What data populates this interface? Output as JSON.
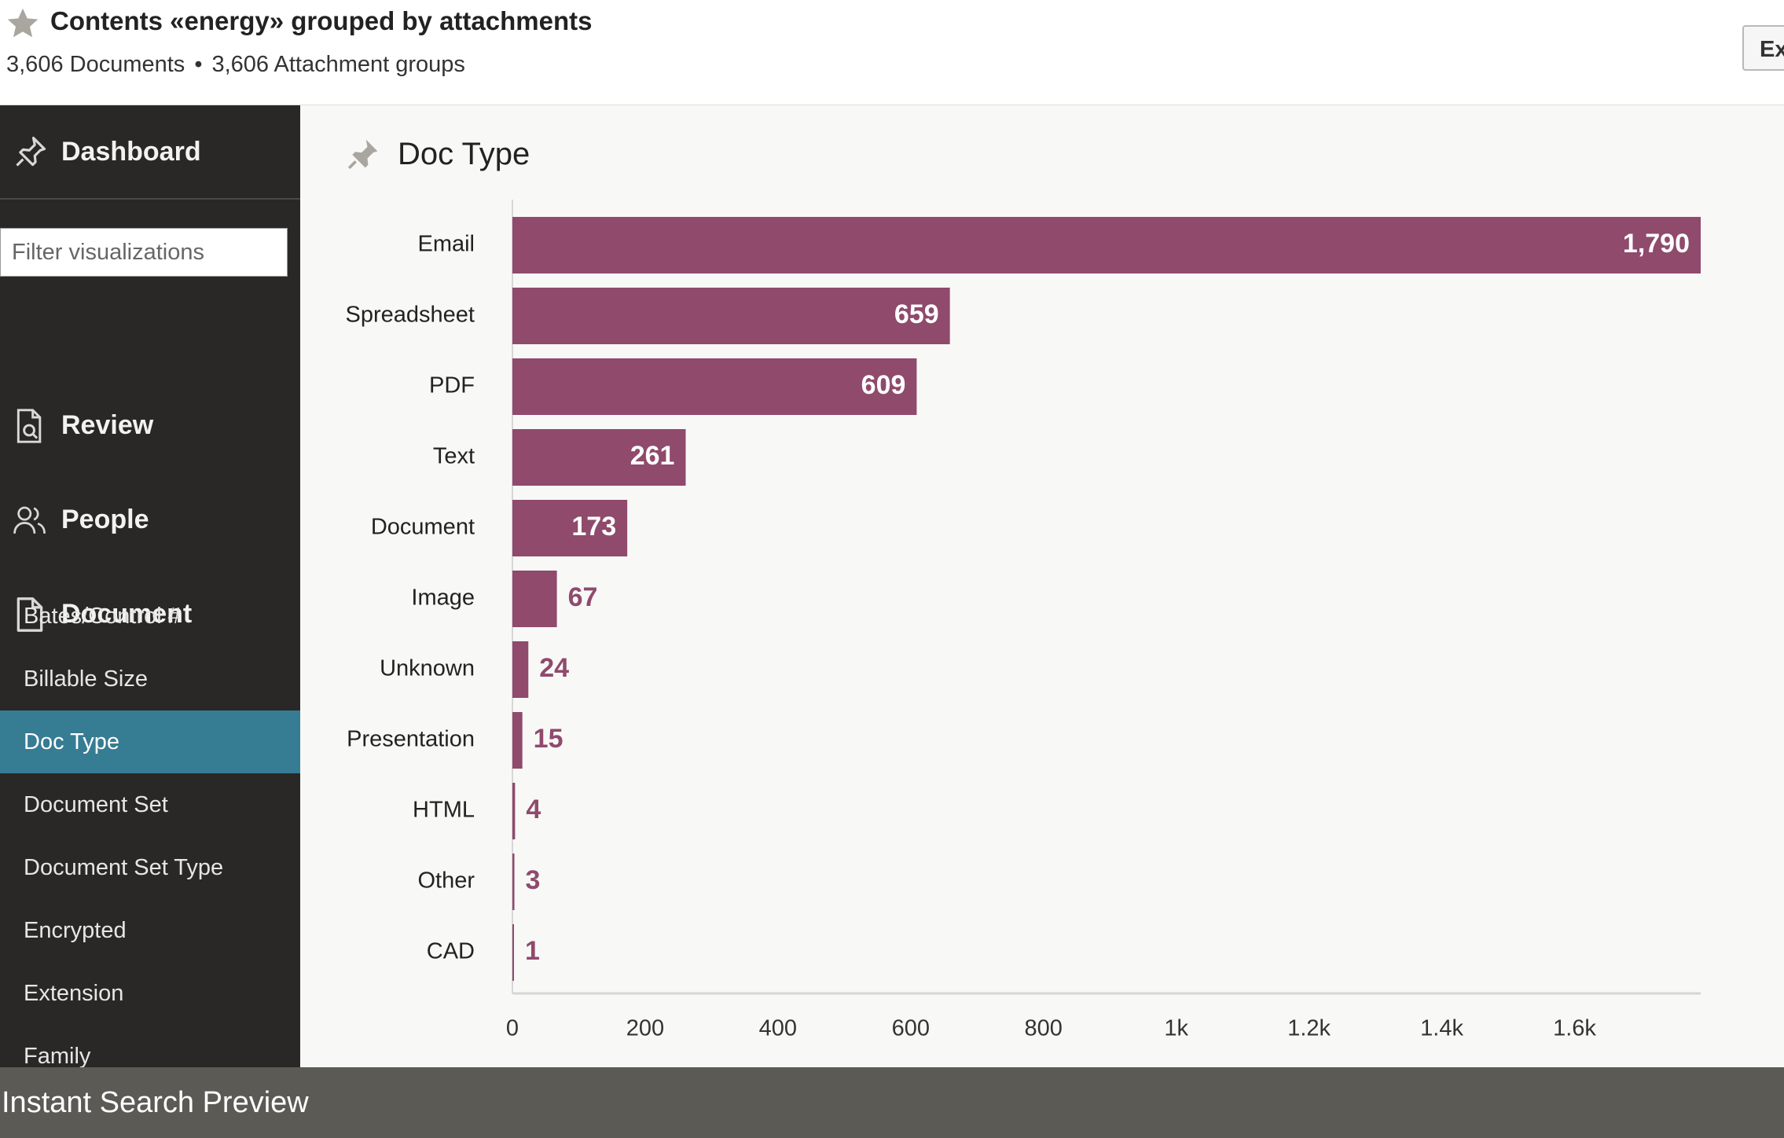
{
  "header": {
    "title": "Contents «energy» grouped by attachments",
    "documents": "3,606 Documents",
    "separator": "•",
    "groups": "3,606 Attachment groups",
    "export_label": "Ex"
  },
  "sidebar": {
    "dashboard_label": "Dashboard",
    "filter_placeholder": "Filter visualizations",
    "sections": [
      {
        "label": "Review",
        "icon": "review-search-icon"
      },
      {
        "label": "People",
        "icon": "people-icon"
      },
      {
        "label": "Document",
        "icon": "document-icon"
      }
    ],
    "items": [
      {
        "label": "Bates/Control #"
      },
      {
        "label": "Billable Size"
      },
      {
        "label": "Doc Type",
        "active": true
      },
      {
        "label": "Document Set"
      },
      {
        "label": "Document Set Type"
      },
      {
        "label": "Encrypted"
      },
      {
        "label": "Extension"
      },
      {
        "label": "Family"
      }
    ]
  },
  "panel": {
    "title": "Doc Type",
    "pin_icon": "pin-icon"
  },
  "chart_data": {
    "type": "bar",
    "orientation": "horizontal",
    "title": "",
    "xlabel": "",
    "ylabel": "",
    "categories": [
      "Email",
      "Spreadsheet",
      "PDF",
      "Text",
      "Document",
      "Image",
      "Unknown",
      "Presentation",
      "HTML",
      "Other",
      "CAD"
    ],
    "values": [
      1790,
      659,
      609,
      261,
      173,
      67,
      24,
      15,
      4,
      3,
      1
    ],
    "value_labels": [
      "1,790",
      "659",
      "609",
      "261",
      "173",
      "67",
      "24",
      "15",
      "4",
      "3",
      "1"
    ],
    "x_ticks": [
      0,
      200,
      400,
      600,
      800,
      1000,
      1200,
      1400,
      1600
    ],
    "x_tick_labels": [
      "0",
      "200",
      "400",
      "600",
      "800",
      "1k",
      "1.2k",
      "1.4k",
      "1.6k"
    ],
    "xlim": [
      0,
      1790
    ],
    "bar_color": "#8f4a6c",
    "grid": false,
    "legend": "none"
  },
  "footer": {
    "label": "Instant Search Preview"
  },
  "colors": {
    "sidebar_bg": "#2a2826",
    "active_item": "#367c93",
    "bar": "#8f4a6c",
    "footer_bg": "#5b5a55"
  }
}
